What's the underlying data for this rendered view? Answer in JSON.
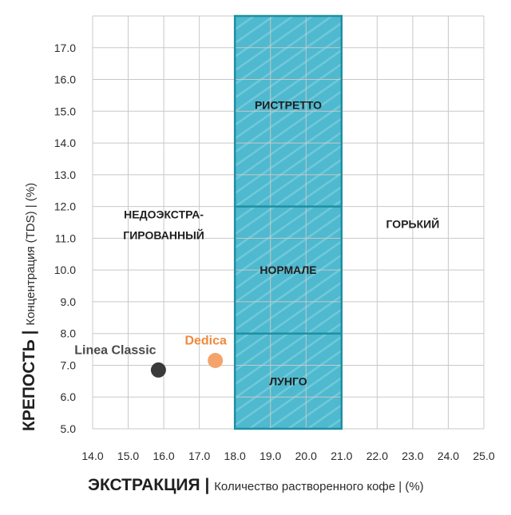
{
  "chart_data": {
    "type": "scatter",
    "title": "",
    "xlabel": {
      "main": "ЭКСТРАКЦИЯ",
      "separator": "|",
      "sub": "Количество растворенного кофе",
      "unit": "| (%)"
    },
    "ylabel": {
      "main": "КРЕПОСТЬ",
      "separator": "|",
      "sub": "Концентрация (TDS) | (%)"
    },
    "xlim": [
      14.0,
      25.0
    ],
    "ylim": [
      5.0,
      18.0
    ],
    "x_ticks": [
      "14.0",
      "15.0",
      "16.0",
      "17.0",
      "18.0",
      "19.0",
      "20.0",
      "21.0",
      "22.0",
      "23.0",
      "24.0",
      "25.0"
    ],
    "y_ticks": [
      "5.0",
      "6.0",
      "7.0",
      "8.0",
      "9.0",
      "10.0",
      "11.0",
      "12.0",
      "13.0",
      "14.0",
      "15.0",
      "16.0",
      "17.0"
    ],
    "grid": true,
    "zone": {
      "x_range": [
        18.0,
        21.0
      ],
      "color": "#4eb9cf",
      "border_color": "#1f8fa3"
    },
    "zone_dividers": [
      8.0,
      12.0
    ],
    "regions": [
      {
        "label": "РИСТРЕТТО",
        "x": 19.5,
        "y": 15.2
      },
      {
        "label": "НОРМАЛЕ",
        "x": 19.5,
        "y": 10.0
      },
      {
        "label": "ЛУНГО",
        "x": 19.5,
        "y": 6.5
      },
      {
        "label": "НЕДОЭКСТРА-",
        "x": 16.0,
        "y": 11.75
      },
      {
        "label": "ГИРОВАННЫЙ",
        "x": 16.0,
        "y": 11.1
      },
      {
        "label": "ГОРЬКИЙ",
        "x": 23.0,
        "y": 11.45
      }
    ],
    "series": [
      {
        "name": "Linea Classic",
        "x": 15.85,
        "y": 6.85,
        "color": "#3a3a3a",
        "label_color": "#4a4a4a"
      },
      {
        "name": "Dedica",
        "x": 17.45,
        "y": 7.15,
        "color": "#f4a46a",
        "label_color": "#f08a3c"
      }
    ]
  }
}
